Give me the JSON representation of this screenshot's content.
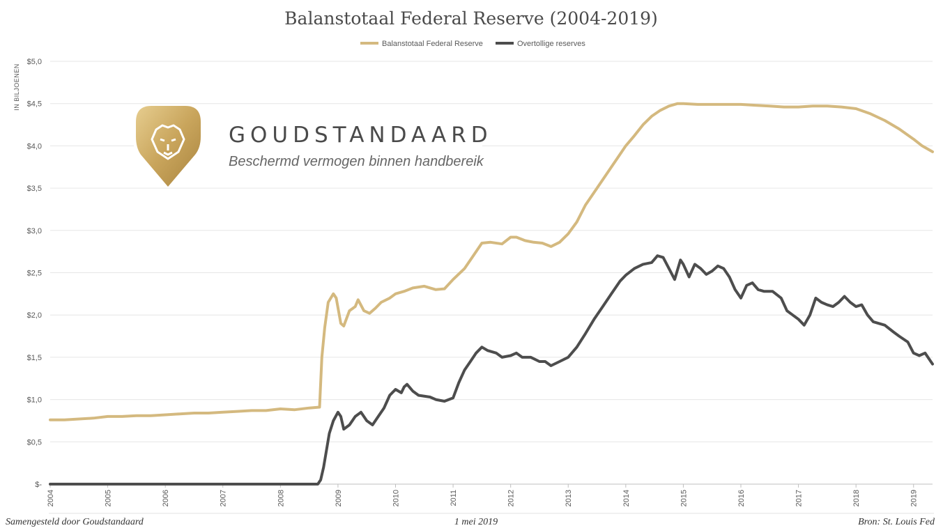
{
  "chart_data": {
    "type": "line",
    "title": "Balanstotaal Federal Reserve (2004-2019)",
    "ylabel": "IN BILJOENEN",
    "legend_position": "top-center",
    "grid": true,
    "xlim": [
      2004.0,
      2019.33
    ],
    "ylim": [
      0,
      5
    ],
    "x_ticks": [
      "2004",
      "2005",
      "2006",
      "2007",
      "2008",
      "2009",
      "2010",
      "2011",
      "2012",
      "2013",
      "2014",
      "2015",
      "2016",
      "2017",
      "2018",
      "2019"
    ],
    "y_ticks": [
      "$-",
      "$0,5",
      "$1,0",
      "$1,5",
      "$2,0",
      "$2,5",
      "$3,0",
      "$3,5",
      "$4,0",
      "$4,5",
      "$5,0"
    ],
    "series": [
      {
        "name": "Balanstotaal Federal Reserve",
        "color": "#d4b97f",
        "points": [
          [
            2004.0,
            0.76
          ],
          [
            2004.25,
            0.76
          ],
          [
            2004.5,
            0.77
          ],
          [
            2004.75,
            0.78
          ],
          [
            2005.0,
            0.8
          ],
          [
            2005.25,
            0.8
          ],
          [
            2005.5,
            0.81
          ],
          [
            2005.75,
            0.81
          ],
          [
            2006.0,
            0.82
          ],
          [
            2006.25,
            0.83
          ],
          [
            2006.5,
            0.84
          ],
          [
            2006.75,
            0.84
          ],
          [
            2007.0,
            0.85
          ],
          [
            2007.25,
            0.86
          ],
          [
            2007.5,
            0.87
          ],
          [
            2007.75,
            0.87
          ],
          [
            2008.0,
            0.89
          ],
          [
            2008.25,
            0.88
          ],
          [
            2008.5,
            0.9
          ],
          [
            2008.68,
            0.91
          ],
          [
            2008.72,
            1.5
          ],
          [
            2008.77,
            1.85
          ],
          [
            2008.83,
            2.15
          ],
          [
            2008.92,
            2.25
          ],
          [
            2008.97,
            2.2
          ],
          [
            2009.05,
            1.9
          ],
          [
            2009.1,
            1.87
          ],
          [
            2009.2,
            2.05
          ],
          [
            2009.3,
            2.1
          ],
          [
            2009.35,
            2.18
          ],
          [
            2009.45,
            2.05
          ],
          [
            2009.55,
            2.02
          ],
          [
            2009.65,
            2.08
          ],
          [
            2009.75,
            2.15
          ],
          [
            2009.9,
            2.2
          ],
          [
            2010.0,
            2.25
          ],
          [
            2010.15,
            2.28
          ],
          [
            2010.3,
            2.32
          ],
          [
            2010.5,
            2.34
          ],
          [
            2010.7,
            2.3
          ],
          [
            2010.85,
            2.31
          ],
          [
            2011.0,
            2.42
          ],
          [
            2011.2,
            2.55
          ],
          [
            2011.35,
            2.7
          ],
          [
            2011.5,
            2.85
          ],
          [
            2011.65,
            2.86
          ],
          [
            2011.85,
            2.84
          ],
          [
            2012.0,
            2.92
          ],
          [
            2012.1,
            2.92
          ],
          [
            2012.25,
            2.88
          ],
          [
            2012.4,
            2.86
          ],
          [
            2012.55,
            2.85
          ],
          [
            2012.7,
            2.81
          ],
          [
            2012.85,
            2.86
          ],
          [
            2013.0,
            2.96
          ],
          [
            2013.15,
            3.1
          ],
          [
            2013.3,
            3.3
          ],
          [
            2013.45,
            3.45
          ],
          [
            2013.6,
            3.6
          ],
          [
            2013.75,
            3.75
          ],
          [
            2013.9,
            3.9
          ],
          [
            2014.0,
            4.0
          ],
          [
            2014.15,
            4.12
          ],
          [
            2014.3,
            4.25
          ],
          [
            2014.45,
            4.35
          ],
          [
            2014.6,
            4.42
          ],
          [
            2014.75,
            4.47
          ],
          [
            2014.9,
            4.5
          ],
          [
            2015.0,
            4.5
          ],
          [
            2015.25,
            4.49
          ],
          [
            2015.5,
            4.49
          ],
          [
            2015.75,
            4.49
          ],
          [
            2016.0,
            4.49
          ],
          [
            2016.25,
            4.48
          ],
          [
            2016.5,
            4.47
          ],
          [
            2016.75,
            4.46
          ],
          [
            2017.0,
            4.46
          ],
          [
            2017.25,
            4.47
          ],
          [
            2017.5,
            4.47
          ],
          [
            2017.75,
            4.46
          ],
          [
            2018.0,
            4.44
          ],
          [
            2018.25,
            4.38
          ],
          [
            2018.5,
            4.3
          ],
          [
            2018.75,
            4.2
          ],
          [
            2019.0,
            4.08
          ],
          [
            2019.15,
            4.0
          ],
          [
            2019.33,
            3.93
          ]
        ]
      },
      {
        "name": "Overtollige reserves",
        "color": "#4d4d4d",
        "points": [
          [
            2004.0,
            0.0
          ],
          [
            2008.65,
            0.0
          ],
          [
            2008.7,
            0.05
          ],
          [
            2008.75,
            0.2
          ],
          [
            2008.8,
            0.4
          ],
          [
            2008.85,
            0.6
          ],
          [
            2008.92,
            0.75
          ],
          [
            2009.0,
            0.85
          ],
          [
            2009.05,
            0.8
          ],
          [
            2009.1,
            0.65
          ],
          [
            2009.2,
            0.7
          ],
          [
            2009.3,
            0.8
          ],
          [
            2009.4,
            0.85
          ],
          [
            2009.5,
            0.75
          ],
          [
            2009.6,
            0.7
          ],
          [
            2009.7,
            0.8
          ],
          [
            2009.8,
            0.9
          ],
          [
            2009.9,
            1.05
          ],
          [
            2010.0,
            1.12
          ],
          [
            2010.1,
            1.08
          ],
          [
            2010.15,
            1.15
          ],
          [
            2010.2,
            1.18
          ],
          [
            2010.3,
            1.1
          ],
          [
            2010.4,
            1.05
          ],
          [
            2010.6,
            1.03
          ],
          [
            2010.7,
            1.0
          ],
          [
            2010.85,
            0.98
          ],
          [
            2011.0,
            1.02
          ],
          [
            2011.1,
            1.2
          ],
          [
            2011.2,
            1.35
          ],
          [
            2011.3,
            1.45
          ],
          [
            2011.4,
            1.55
          ],
          [
            2011.5,
            1.62
          ],
          [
            2011.6,
            1.58
          ],
          [
            2011.75,
            1.55
          ],
          [
            2011.85,
            1.5
          ],
          [
            2012.0,
            1.52
          ],
          [
            2012.1,
            1.55
          ],
          [
            2012.2,
            1.5
          ],
          [
            2012.35,
            1.5
          ],
          [
            2012.5,
            1.45
          ],
          [
            2012.6,
            1.45
          ],
          [
            2012.7,
            1.4
          ],
          [
            2012.85,
            1.45
          ],
          [
            2013.0,
            1.5
          ],
          [
            2013.15,
            1.62
          ],
          [
            2013.3,
            1.78
          ],
          [
            2013.45,
            1.95
          ],
          [
            2013.6,
            2.1
          ],
          [
            2013.75,
            2.25
          ],
          [
            2013.9,
            2.4
          ],
          [
            2014.0,
            2.47
          ],
          [
            2014.15,
            2.55
          ],
          [
            2014.3,
            2.6
          ],
          [
            2014.45,
            2.62
          ],
          [
            2014.55,
            2.7
          ],
          [
            2014.65,
            2.68
          ],
          [
            2014.75,
            2.55
          ],
          [
            2014.85,
            2.42
          ],
          [
            2014.95,
            2.65
          ],
          [
            2015.0,
            2.6
          ],
          [
            2015.1,
            2.45
          ],
          [
            2015.2,
            2.6
          ],
          [
            2015.3,
            2.55
          ],
          [
            2015.4,
            2.48
          ],
          [
            2015.5,
            2.52
          ],
          [
            2015.6,
            2.58
          ],
          [
            2015.7,
            2.55
          ],
          [
            2015.8,
            2.45
          ],
          [
            2015.9,
            2.3
          ],
          [
            2016.0,
            2.2
          ],
          [
            2016.1,
            2.35
          ],
          [
            2016.2,
            2.38
          ],
          [
            2016.3,
            2.3
          ],
          [
            2016.4,
            2.28
          ],
          [
            2016.55,
            2.28
          ],
          [
            2016.7,
            2.2
          ],
          [
            2016.8,
            2.05
          ],
          [
            2016.9,
            2.0
          ],
          [
            2017.0,
            1.95
          ],
          [
            2017.1,
            1.88
          ],
          [
            2017.2,
            2.0
          ],
          [
            2017.3,
            2.2
          ],
          [
            2017.4,
            2.15
          ],
          [
            2017.5,
            2.12
          ],
          [
            2017.6,
            2.1
          ],
          [
            2017.7,
            2.15
          ],
          [
            2017.8,
            2.22
          ],
          [
            2017.9,
            2.15
          ],
          [
            2018.0,
            2.1
          ],
          [
            2018.1,
            2.12
          ],
          [
            2018.2,
            2.0
          ],
          [
            2018.3,
            1.92
          ],
          [
            2018.5,
            1.88
          ],
          [
            2018.65,
            1.8
          ],
          [
            2018.75,
            1.75
          ],
          [
            2018.9,
            1.68
          ],
          [
            2019.0,
            1.55
          ],
          [
            2019.1,
            1.52
          ],
          [
            2019.2,
            1.55
          ],
          [
            2019.3,
            1.45
          ],
          [
            2019.33,
            1.42
          ]
        ]
      }
    ]
  },
  "logo": {
    "wordmark": "GOUDSTANDAARD",
    "tagline": "Beschermd vermogen binnen handbereik",
    "color": "#c9a55c"
  },
  "footer": {
    "left": "Samengesteld door Goudstandaard",
    "center": "1 mei 2019",
    "right": "Bron: St. Louis Fed"
  }
}
